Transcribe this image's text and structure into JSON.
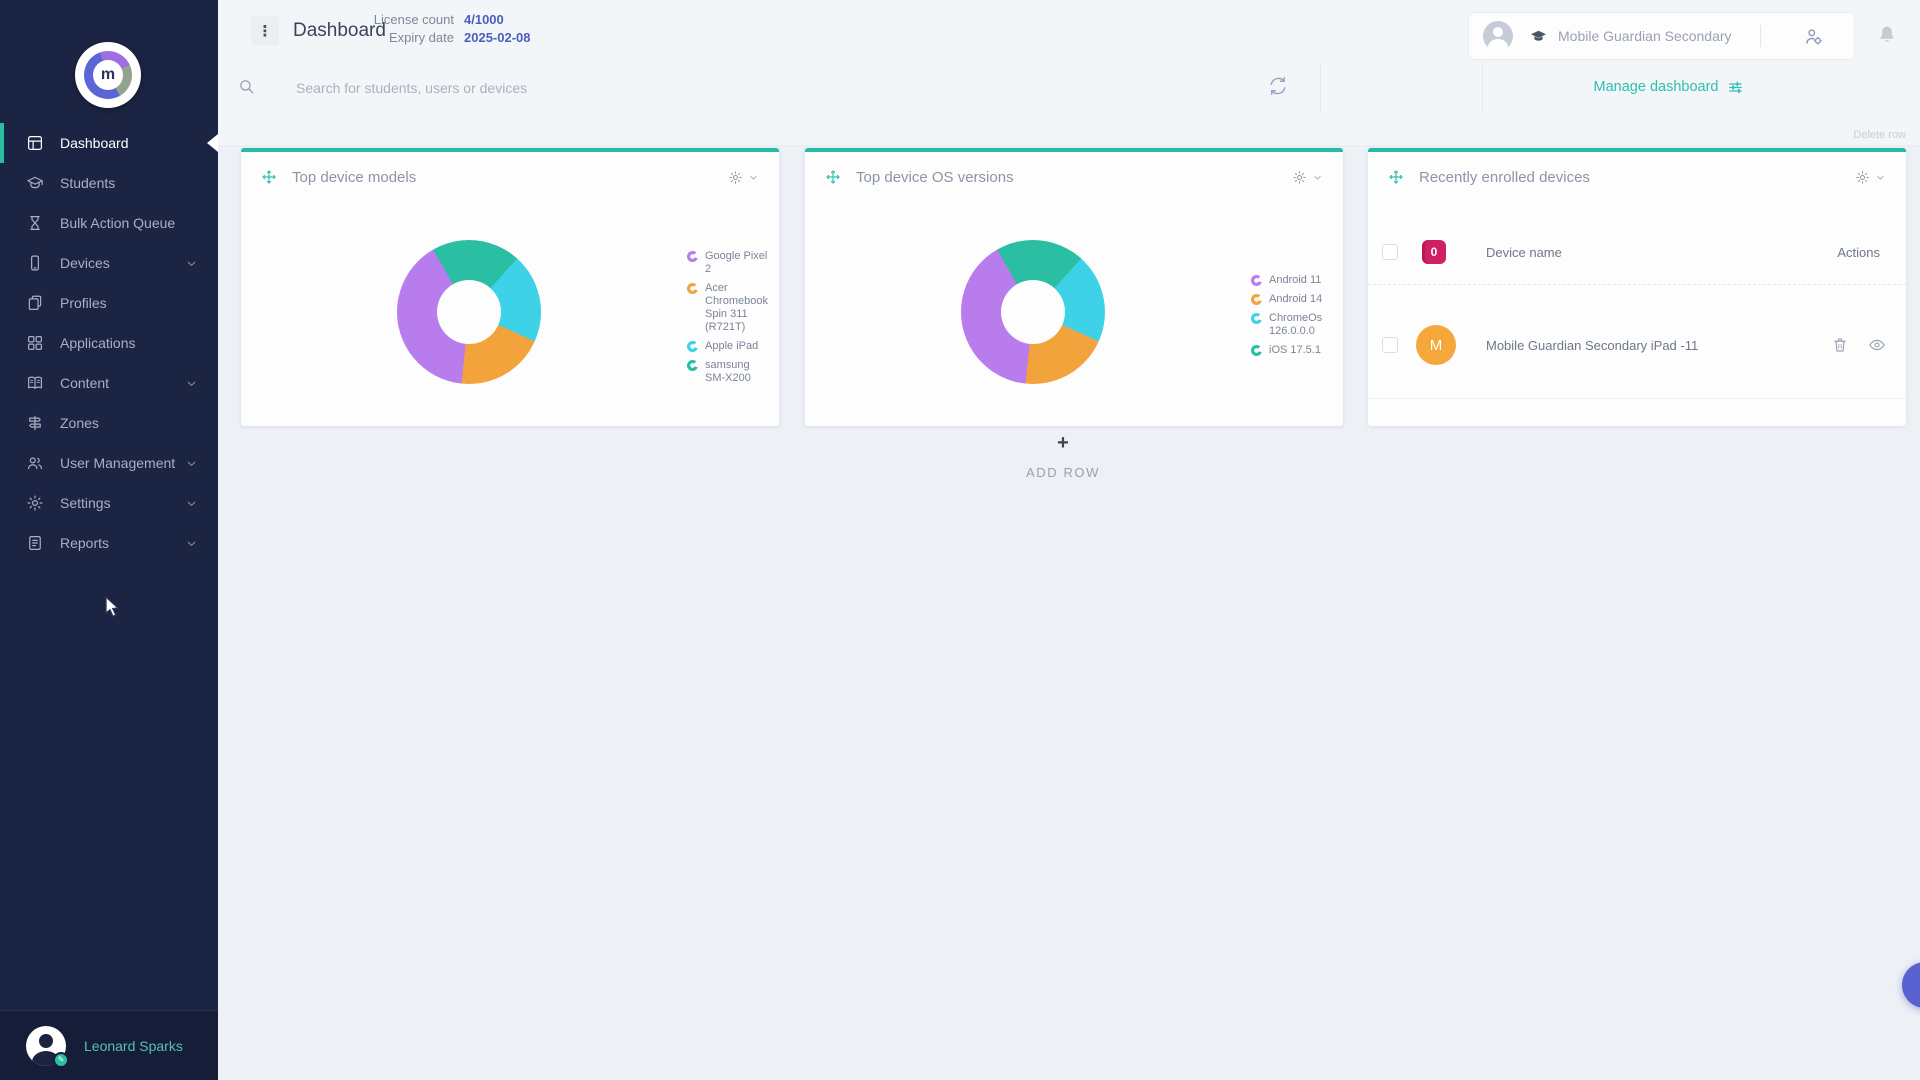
{
  "sidebar": {
    "logo_letter": "m",
    "items": [
      {
        "label": "Dashboard",
        "icon": "dashboard-icon",
        "active": true,
        "expandable": false
      },
      {
        "label": "Students",
        "icon": "graduation-cap-icon",
        "active": false,
        "expandable": false
      },
      {
        "label": "Bulk Action Queue",
        "icon": "hourglass-icon",
        "active": false,
        "expandable": false
      },
      {
        "label": "Devices",
        "icon": "device-icon",
        "active": false,
        "expandable": true
      },
      {
        "label": "Profiles",
        "icon": "pages-icon",
        "active": false,
        "expandable": false
      },
      {
        "label": "Applications",
        "icon": "apps-grid-icon",
        "active": false,
        "expandable": false
      },
      {
        "label": "Content",
        "icon": "book-icon",
        "active": false,
        "expandable": true
      },
      {
        "label": "Zones",
        "icon": "signpost-icon",
        "active": false,
        "expandable": false
      },
      {
        "label": "User Management",
        "icon": "users-icon",
        "active": false,
        "expandable": true
      },
      {
        "label": "Settings",
        "icon": "gear-icon",
        "active": false,
        "expandable": true
      },
      {
        "label": "Reports",
        "icon": "report-icon",
        "active": false,
        "expandable": true
      }
    ],
    "user": {
      "name": "Leonard Sparks"
    }
  },
  "header": {
    "page_title": "Dashboard",
    "license_label": "License count",
    "license_value": "4/1000",
    "expiry_label": "Expiry date",
    "expiry_value": "2025-02-08",
    "organization": "Mobile Guardian Secondary",
    "manage_dashboard_label": "Manage dashboard",
    "kebab_glyph": "⋮"
  },
  "search": {
    "placeholder": "Search for students, users or devices"
  },
  "board": {
    "delete_row_label": "Delete row",
    "add_row_label": "ADD ROW",
    "plus": "+"
  },
  "cards": {
    "recently_enrolled_title": "Recently enrolled devices"
  },
  "table": {
    "device_name_column": "Device name",
    "actions_column": "Actions",
    "selected_badge": "0",
    "rows": [
      {
        "avatar_initial": "M",
        "device_name": "Mobile Guardian Secondary iPad -11"
      }
    ]
  },
  "chart_data": [
    {
      "type": "donut",
      "title": "Top device models",
      "legend_position": "right",
      "labels": [
        "Google Pixel 2",
        "Acer Chromebook Spin 311 (R721T)",
        "Apple iPad",
        "samsung SM-X200"
      ],
      "values": [
        2,
        1,
        1,
        1
      ],
      "percentages": [
        40,
        20,
        20,
        20
      ],
      "colors": [
        "#b87ced",
        "#f2a33c",
        "#3dd2e7",
        "#2abfa3"
      ]
    },
    {
      "type": "donut",
      "title": "Top device OS versions",
      "legend_position": "right",
      "labels": [
        "Android 11",
        "Android 14",
        "ChromeOs 126.0.0.0",
        "iOS 17.5.1"
      ],
      "values": [
        2,
        1,
        1,
        1
      ],
      "percentages": [
        40,
        20,
        20,
        20
      ],
      "colors": [
        "#b87ced",
        "#f2a33c",
        "#3dd2e7",
        "#2abfa3"
      ]
    }
  ],
  "colors": {
    "accent_teal": "#2abfa3",
    "indigo_value": "#4d5cc0",
    "badge_pink": "#d11f63",
    "avatar_orange": "#f5a73c",
    "sidebar_bg": "#1c2444",
    "help_fab": "#5a62d2"
  },
  "help": {
    "fab_glyph": "?"
  }
}
